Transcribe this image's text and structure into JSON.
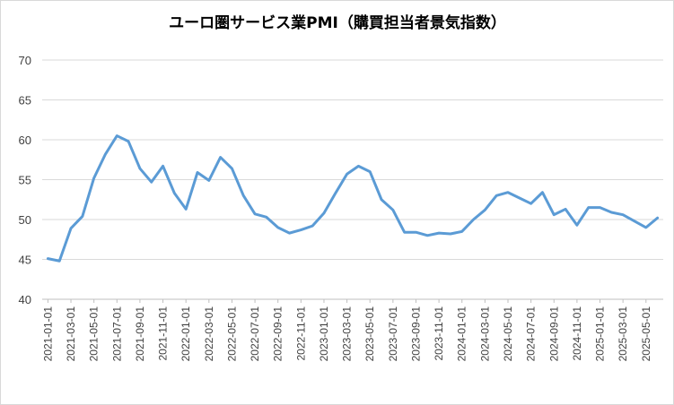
{
  "chart_data": {
    "type": "line",
    "title": "ユーロ圏サービス業PMI（購買担当者景気指数）",
    "xlabel": "",
    "ylabel": "",
    "ylim": [
      40,
      70
    ],
    "yticks": [
      "40",
      "45",
      "50",
      "55",
      "60",
      "65",
      "70"
    ],
    "grid": true,
    "legend": "none",
    "color": "#5b9bd5",
    "x_tick_labels": [
      "2021-01-01",
      "2021-03-01",
      "2021-05-01",
      "2021-07-01",
      "2021-09-01",
      "2021-11-01",
      "2022-01-01",
      "2022-03-01",
      "2022-05-01",
      "2022-07-01",
      "2022-09-01",
      "2022-11-01",
      "2023-01-01",
      "2023-03-01",
      "2023-05-01",
      "2023-07-01",
      "2023-09-01",
      "2023-11-01",
      "2024-01-01",
      "2024-03-01",
      "2024-05-01",
      "2024-07-01",
      "2024-09-01",
      "2024-11-01",
      "2025-01-01",
      "2025-03-01",
      "2025-05-01"
    ],
    "x": [
      "2021-01-01",
      "2021-02-01",
      "2021-03-01",
      "2021-04-01",
      "2021-05-01",
      "2021-06-01",
      "2021-07-01",
      "2021-08-01",
      "2021-09-01",
      "2021-10-01",
      "2021-11-01",
      "2021-12-01",
      "2022-01-01",
      "2022-02-01",
      "2022-03-01",
      "2022-04-01",
      "2022-05-01",
      "2022-06-01",
      "2022-07-01",
      "2022-08-01",
      "2022-09-01",
      "2022-10-01",
      "2022-11-01",
      "2022-12-01",
      "2023-01-01",
      "2023-02-01",
      "2023-03-01",
      "2023-04-01",
      "2023-05-01",
      "2023-06-01",
      "2023-07-01",
      "2023-08-01",
      "2023-09-01",
      "2023-10-01",
      "2023-11-01",
      "2023-12-01",
      "2024-01-01",
      "2024-02-01",
      "2024-03-01",
      "2024-04-01",
      "2024-05-01",
      "2024-06-01",
      "2024-07-01",
      "2024-08-01",
      "2024-09-01",
      "2024-10-01",
      "2024-11-01",
      "2024-12-01",
      "2025-01-01",
      "2025-02-01",
      "2025-03-01",
      "2025-04-01",
      "2025-05-01",
      "2025-06-01"
    ],
    "series": [
      {
        "values": [
          45.1,
          44.8,
          48.9,
          50.4,
          55.2,
          58.2,
          60.5,
          59.8,
          56.4,
          54.7,
          56.7,
          53.3,
          51.3,
          55.9,
          54.9,
          57.8,
          56.4,
          53.0,
          50.7,
          50.3,
          49.0,
          48.3,
          48.7,
          49.2,
          50.8,
          53.3,
          55.7,
          56.7,
          56.0,
          52.5,
          51.2,
          48.4,
          48.4,
          48.0,
          48.3,
          48.2,
          48.5,
          50.0,
          51.2,
          53.0,
          53.4,
          52.7,
          52.0,
          53.4,
          50.6,
          51.3,
          49.3,
          51.5,
          51.5,
          50.9,
          50.6,
          49.8,
          49.0,
          50.2
        ]
      }
    ]
  }
}
